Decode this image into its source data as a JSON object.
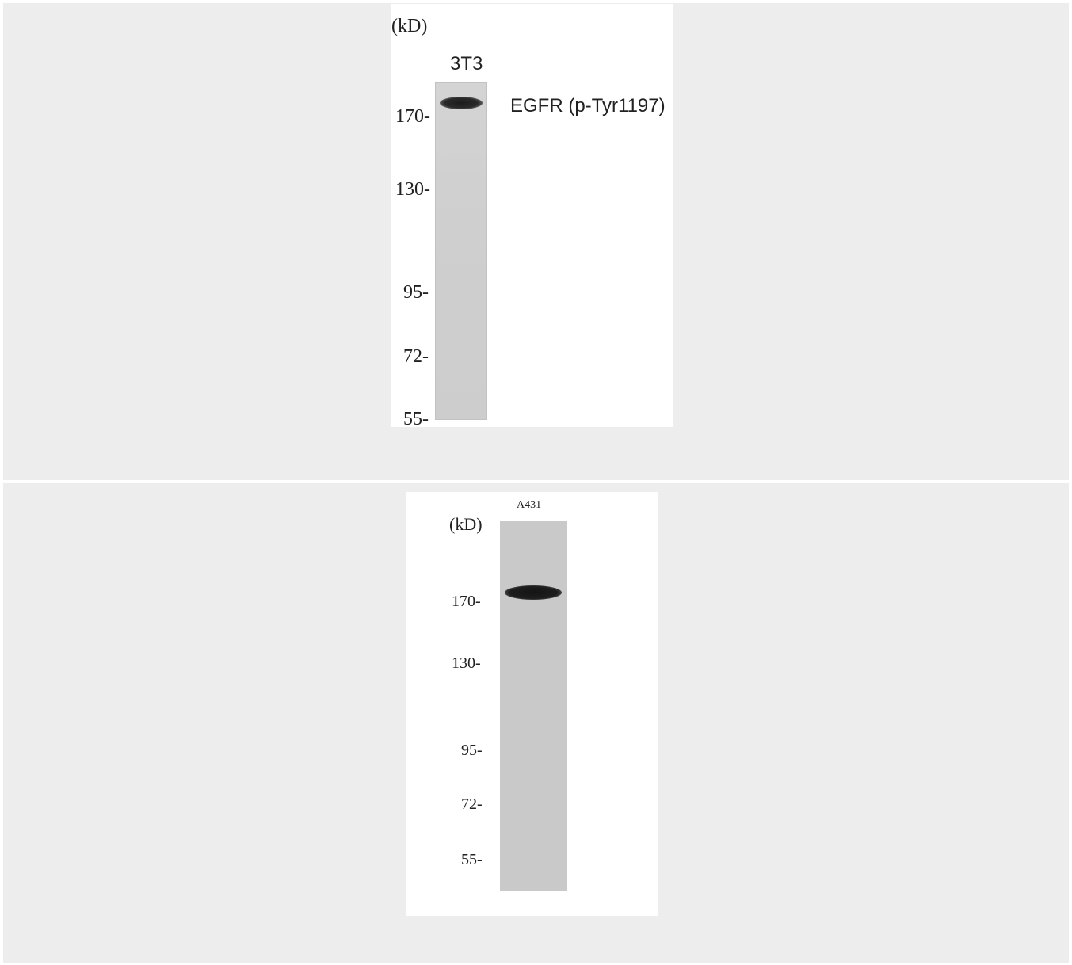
{
  "panels": [
    {
      "unit_label": "(kD)",
      "lane_label": "3T3",
      "band_label": "EGFR (p-Tyr1197)",
      "markers": [
        "170-",
        "130-",
        "95-",
        "72-",
        "55-"
      ]
    },
    {
      "unit_label": "(kD)",
      "lane_label": "A431",
      "markers": [
        "170-",
        "130-",
        "95-",
        "72-",
        "55-"
      ]
    }
  ]
}
